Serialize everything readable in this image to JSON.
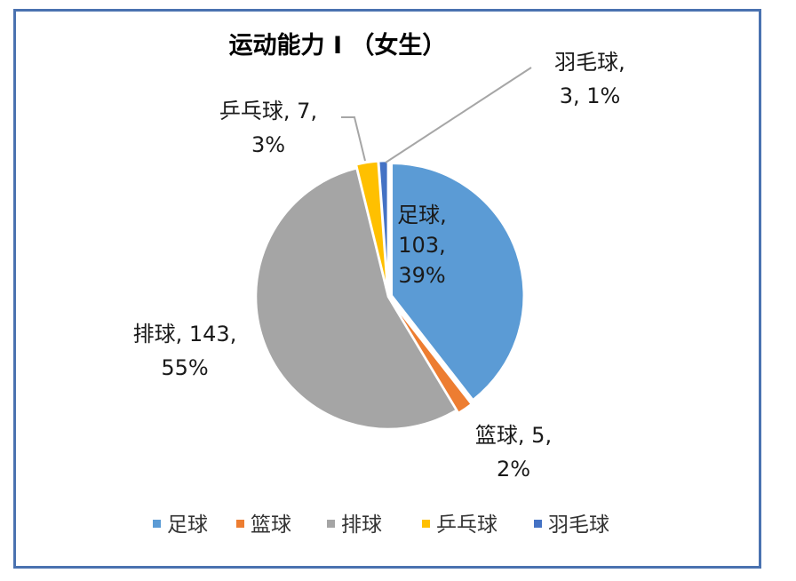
{
  "chart_data": {
    "type": "pie",
    "title": "运动能力 I （女生）",
    "slices": [
      {
        "name": "足球",
        "value": 103,
        "percent": "39%",
        "color": "#5b9bd5"
      },
      {
        "name": "篮球",
        "value": 5,
        "percent": "2%",
        "color": "#ed7d31"
      },
      {
        "name": "排球",
        "value": 143,
        "percent": "55%",
        "color": "#a5a5a5"
      },
      {
        "name": "乒乓球",
        "value": 7,
        "percent": "3%",
        "color": "#ffc000"
      },
      {
        "name": "羽毛球",
        "value": 3,
        "percent": "1%",
        "color": "#4472c4"
      }
    ],
    "data_labels": [
      {
        "lines": [
          "足球,",
          "103,",
          "39%"
        ]
      },
      {
        "lines": [
          "篮球, 5,",
          "2%"
        ]
      },
      {
        "lines": [
          "排球, 143,",
          "55%"
        ]
      },
      {
        "lines": [
          "乒乓球, 7,",
          "3%"
        ]
      },
      {
        "lines": [
          "羽毛球,",
          "3, 1%"
        ]
      }
    ],
    "legend": {
      "position": "bottom",
      "entries": [
        "足球",
        "篮球",
        "排球",
        "乒乓球",
        "羽毛球"
      ]
    }
  }
}
